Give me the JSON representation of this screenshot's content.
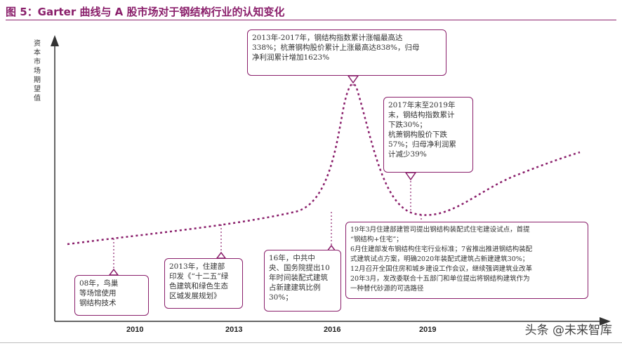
{
  "title": "图 5：Garter 曲线与 A 股市场对于钢结构行业的认知变化",
  "y_axis_label": "资本市场期望值",
  "x_ticks": [
    "2010",
    "2013",
    "2016",
    "2019"
  ],
  "annotations": [
    {
      "id": "box-2008",
      "lines": [
        "08年，鸟巢",
        "等场馆使用",
        "钢结构技术"
      ]
    },
    {
      "id": "box-2013",
      "lines": [
        "2013年，住建部",
        "印发《“十二五”绿",
        "色建筑和绿色生态",
        "区城发展规划》"
      ]
    },
    {
      "id": "box-2016",
      "lines": [
        "16年，中共中",
        "央、国务院提出10",
        "年时间装配式建筑",
        "占新建建筑比例",
        "30%；"
      ]
    },
    {
      "id": "box-peak",
      "lines": [
        "2013年-2017年，钢结构指数累计涨幅最高达",
        "338%；杭萧钢构股价累计上涨最高达838%，归母",
        "净利润累计增加1623%"
      ]
    },
    {
      "id": "box-decline",
      "lines": [
        "2017年末至2019年",
        "末，钢结构指数累计",
        "下跌30%；",
        "杭萧钢构股价下跌",
        "57%；归母净利润累",
        "计减少39%"
      ]
    },
    {
      "id": "box-2019",
      "lines": [
        "19年3月住建部建管司提出钢结构装配式住宅建设试点，首提",
        "“钢结构+住宅”；",
        "6月住建部发布钢结构住宅行业标准；7省推出推进钢结构装配",
        "式建筑试点方案，明确2020年装配式建筑占新建建筑30%；",
        "12月召开全国住房和城乡建设工作会议，继续强调建筑业改革",
        "20年3月，发改委联合十五部门和单位提出将钢结构建筑作为",
        "一种替代砂源的可选路径"
      ]
    }
  ],
  "watermark": "头条 @未来智库",
  "colors": {
    "accent": "#8a1f6b",
    "axis": "#333333",
    "text": "#333333"
  }
}
